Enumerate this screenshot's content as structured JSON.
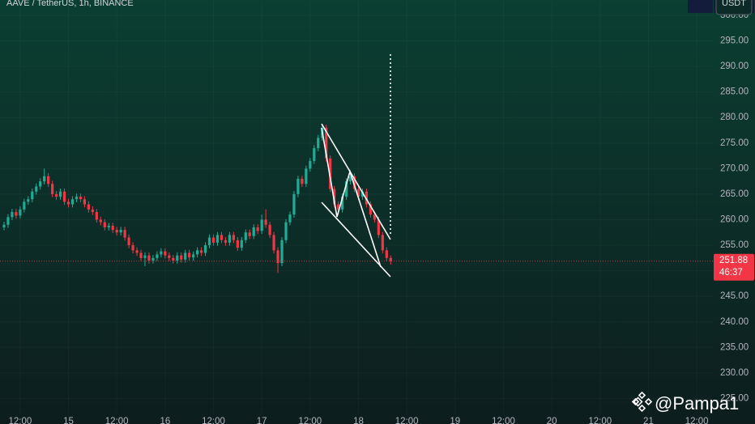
{
  "chart_data": {
    "type": "candlestick",
    "title": "AAVE / TetherUS, 1h, BINANCE",
    "currency": "USDT",
    "watermark": "@Pampa1",
    "up_color": "#22ab94",
    "down_color": "#f23645",
    "xlim": [
      -5,
      172
    ],
    "xticks": [
      {
        "value": 0,
        "label": "12:00"
      },
      {
        "value": 12,
        "label": "15"
      },
      {
        "value": 24,
        "label": "12:00"
      },
      {
        "value": 36,
        "label": "16"
      },
      {
        "value": 48,
        "label": "12:00"
      },
      {
        "value": 60,
        "label": "17"
      },
      {
        "value": 72,
        "label": "12:00"
      },
      {
        "value": 84,
        "label": "18"
      },
      {
        "value": 96,
        "label": "12:00"
      },
      {
        "value": 108,
        "label": "19"
      },
      {
        "value": 120,
        "label": "12:00"
      },
      {
        "value": 132,
        "label": "20"
      },
      {
        "value": 144,
        "label": "12:00"
      },
      {
        "value": 156,
        "label": "21"
      },
      {
        "value": 168,
        "label": "12:00"
      }
    ],
    "ylim": [
      220,
      303
    ],
    "yticks": [
      {
        "value": 225,
        "label": "225.00"
      },
      {
        "value": 230,
        "label": "230.00"
      },
      {
        "value": 235,
        "label": "235.00"
      },
      {
        "value": 240,
        "label": "240.00"
      },
      {
        "value": 245,
        "label": "245.00"
      },
      {
        "value": 250,
        "label": "250.00"
      },
      {
        "value": 255,
        "label": "255.00"
      },
      {
        "value": 260,
        "label": "260.00"
      },
      {
        "value": 265,
        "label": "265.00"
      },
      {
        "value": 270,
        "label": "270.00"
      },
      {
        "value": 275,
        "label": "275.00"
      },
      {
        "value": 280,
        "label": "280.00"
      },
      {
        "value": 285,
        "label": "285.00"
      },
      {
        "value": 290,
        "label": "290.00"
      },
      {
        "value": 295,
        "label": "295.00"
      },
      {
        "value": 300,
        "label": "300.00"
      }
    ],
    "high": [
      259.6,
      261.1,
      262.1,
      262.1,
      262.6,
      264.1,
      264.6,
      266.1,
      267.1,
      268.1,
      270,
      269.1,
      267.6,
      265.6,
      266.1,
      266.1,
      264.1,
      264.6,
      265.1,
      265.1,
      264.6,
      263.6,
      262.6,
      262.1,
      260.6,
      260.1,
      259.4,
      259.4,
      258.6,
      258.6,
      258.6,
      257.1,
      255.6,
      254.6,
      254.1,
      253.6,
      253.6,
      253.1,
      253.8,
      254.4,
      254.4,
      253.6,
      253.1,
      253.6,
      253.6,
      254.1,
      254.1,
      253.8,
      254.6,
      254.6,
      255.6,
      257.1,
      257.1,
      257.6,
      257.6,
      256.6,
      257.6,
      257.6,
      256.6,
      256.6,
      258.1,
      258.1,
      259.1,
      259.1,
      261,
      262,
      259.6,
      257.6,
      254.6,
      256.6,
      260.1,
      261.6,
      265.6,
      268.6,
      268.6,
      270.6,
      272.1,
      274.6,
      276.6,
      278.68,
      278.6,
      272.6,
      266.6,
      263.6,
      265.1,
      268.1,
      269.5,
      269.1,
      266.6,
      266.1,
      266.1,
      263.6,
      261.6,
      260.6,
      257.6,
      254.6,
      253
    ],
    "low": [
      257.9,
      258.4,
      259.9,
      260.2,
      260.2,
      261.4,
      262.9,
      263.4,
      264.9,
      265.9,
      266.9,
      266.4,
      264.4,
      263.9,
      263.9,
      262.9,
      262.4,
      262.4,
      263.4,
      263.4,
      262.4,
      261.4,
      260.9,
      259.4,
      258.9,
      257.9,
      257.9,
      257.4,
      256.9,
      256.9,
      255.9,
      254.4,
      253.4,
      252.9,
      251.9,
      250.9,
      251.4,
      251.4,
      251.9,
      252.6,
      252.4,
      251.9,
      251.4,
      251.4,
      251.6,
      251.6,
      252,
      252,
      252.6,
      252.9,
      252.9,
      254.4,
      254.9,
      254.9,
      255.4,
      254.9,
      254.9,
      255.4,
      253.9,
      253.9,
      255.4,
      256.2,
      256.2,
      257.2,
      257.2,
      258.4,
      256.4,
      253.4,
      249.56,
      250.9,
      255.4,
      258.9,
      260.4,
      264.4,
      266.4,
      266.4,
      269.4,
      270.9,
      273.4,
      275.4,
      271.4,
      265.4,
      262.4,
      261,
      261.4,
      263.9,
      266.9,
      265.4,
      263.9,
      263.9,
      262.4,
      260.4,
      259.4,
      256.4,
      253.4,
      251.9,
      251.2
    ],
    "last": {
      "value": 251.88,
      "countdown": "46:37"
    },
    "x": [
      -4,
      -3,
      -2,
      -1,
      0,
      1,
      2,
      3,
      4,
      5,
      6,
      7,
      8,
      9,
      10,
      11,
      12,
      13,
      14,
      15,
      16,
      17,
      18,
      19,
      20,
      21,
      22,
      23,
      24,
      25,
      26,
      27,
      28,
      29,
      30,
      31,
      32,
      33,
      34,
      35,
      36,
      37,
      38,
      39,
      40,
      41,
      42,
      43,
      44,
      45,
      46,
      47,
      48,
      49,
      50,
      51,
      52,
      53,
      54,
      55,
      56,
      57,
      58,
      59,
      60,
      61,
      62,
      63,
      64,
      65,
      66,
      67,
      68,
      69,
      70,
      71,
      72,
      73,
      74,
      75,
      76,
      77,
      78,
      79,
      80,
      81,
      82,
      83,
      84,
      85,
      86,
      87,
      88,
      89,
      90,
      91,
      92
    ],
    "open": [
      258.5,
      259,
      260.5,
      261.5,
      260.8,
      262,
      263.5,
      264,
      265.5,
      266.5,
      267.5,
      268.5,
      267,
      265,
      264.5,
      265.5,
      263.5,
      263,
      264,
      264.5,
      264,
      263,
      262,
      261.5,
      260,
      259.5,
      258.5,
      258.8,
      258,
      257.5,
      258,
      256.5,
      255,
      254,
      253.5,
      252.5,
      253,
      252,
      252.5,
      253.2,
      253.8,
      253,
      252.5,
      252,
      253,
      252.2,
      253.5,
      252.6,
      253.2,
      254,
      253.5,
      255,
      256.5,
      255.5,
      257,
      256,
      255.5,
      257,
      256,
      254.5,
      256,
      257.5,
      256.8,
      258.5,
      257.8,
      260,
      259,
      257,
      254,
      251.5,
      256,
      259.5,
      261,
      265,
      268,
      267,
      270,
      271.5,
      274,
      276,
      278,
      272,
      266,
      263,
      262,
      264.5,
      267.5,
      268.5,
      266,
      264.5,
      265.5,
      263,
      261,
      260,
      257,
      254,
      252.5
    ],
    "close": [
      259,
      260.5,
      261.5,
      260.8,
      262,
      263.5,
      264,
      265.5,
      266.5,
      267.5,
      268.5,
      267,
      265,
      264.5,
      265.5,
      263.5,
      263,
      264,
      264.5,
      264,
      263,
      262,
      261.5,
      260,
      259.5,
      258.5,
      258.8,
      258,
      257.5,
      258,
      256.5,
      255,
      254,
      253.5,
      252.5,
      253,
      252,
      252.5,
      253.2,
      253.8,
      253,
      252.5,
      252,
      253,
      252.2,
      253.5,
      252.6,
      253.2,
      254,
      253.5,
      255,
      256.5,
      255.5,
      257,
      256,
      255.5,
      257,
      256,
      254.5,
      256,
      257.5,
      256.8,
      258.5,
      257.8,
      260,
      259,
      257,
      254,
      251.5,
      256,
      259.5,
      261,
      265,
      268,
      267,
      270,
      271.5,
      274,
      276,
      278,
      272,
      266,
      263,
      262,
      264.5,
      267.5,
      268.5,
      266,
      264.5,
      265.5,
      263,
      261,
      260,
      257,
      254,
      252.5,
      251.88
    ]
  }
}
